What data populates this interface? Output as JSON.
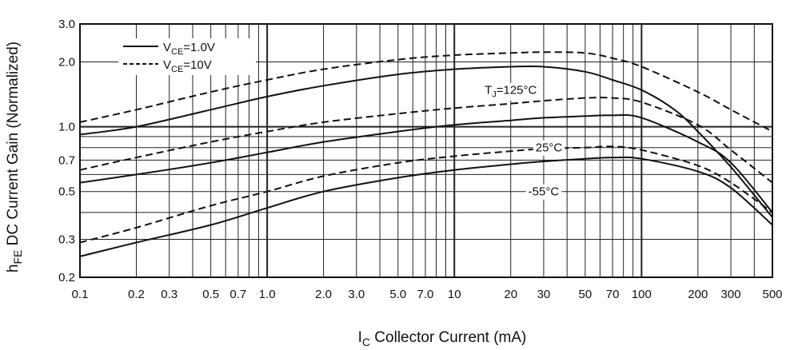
{
  "chart_data": {
    "type": "line",
    "xlabel": "Collector Current (mA)",
    "xlabel_symbol": "I",
    "xlabel_sub": "C",
    "ylabel": "DC Current Gain (Normalized)",
    "ylabel_symbol": "h",
    "ylabel_sub": "FE",
    "x_scale": "log",
    "y_scale": "log",
    "xlim": [
      0.1,
      500
    ],
    "ylim": [
      0.2,
      3.0
    ],
    "grid": true,
    "legend_position": "top-left",
    "x_ticks": [
      {
        "v": 0.1,
        "label": "0.1"
      },
      {
        "v": 0.2,
        "label": "0.2"
      },
      {
        "v": 0.3,
        "label": "0.3"
      },
      {
        "v": 0.5,
        "label": "0.5"
      },
      {
        "v": 0.7,
        "label": "0.7"
      },
      {
        "v": 1.0,
        "label": "1.0"
      },
      {
        "v": 2.0,
        "label": "2.0"
      },
      {
        "v": 3.0,
        "label": "3.0"
      },
      {
        "v": 5.0,
        "label": "5.0"
      },
      {
        "v": 7.0,
        "label": "7.0"
      },
      {
        "v": 10,
        "label": "10"
      },
      {
        "v": 20,
        "label": "20"
      },
      {
        "v": 30,
        "label": "30"
      },
      {
        "v": 50,
        "label": "50"
      },
      {
        "v": 70,
        "label": "70"
      },
      {
        "v": 100,
        "label": "100"
      },
      {
        "v": 200,
        "label": "200"
      },
      {
        "v": 300,
        "label": "300"
      },
      {
        "v": 500,
        "label": "500"
      }
    ],
    "y_ticks": [
      {
        "v": 0.2,
        "label": "0.2"
      },
      {
        "v": 0.3,
        "label": "0.3"
      },
      {
        "v": 0.5,
        "label": "0.5"
      },
      {
        "v": 0.7,
        "label": "0.7"
      },
      {
        "v": 1.0,
        "label": "1.0"
      },
      {
        "v": 2.0,
        "label": "2.0"
      },
      {
        "v": 3.0,
        "label": "3.0"
      }
    ],
    "legend": [
      {
        "symbol": "V",
        "sub": "CE",
        "text": "=1.0V",
        "style": "solid"
      },
      {
        "symbol": "V",
        "sub": "CE",
        "text": "=10V",
        "style": "dashed"
      }
    ],
    "annotations": [
      {
        "text": "=125°C",
        "prefix": "T",
        "sub": "J",
        "at": [
          20,
          1.48
        ]
      },
      {
        "text": "25°C",
        "at": [
          32,
          0.8
        ]
      },
      {
        "text": "-55°C",
        "at": [
          30,
          0.5
        ]
      }
    ],
    "series": [
      {
        "temp": "125°C",
        "style": "solid",
        "x": [
          0.1,
          0.2,
          0.5,
          1,
          2,
          5,
          10,
          20,
          30,
          50,
          70,
          100,
          150,
          200,
          300,
          500
        ],
        "y": [
          0.92,
          1.0,
          1.2,
          1.38,
          1.55,
          1.75,
          1.85,
          1.9,
          1.9,
          1.8,
          1.65,
          1.48,
          1.2,
          0.95,
          0.65,
          0.38
        ]
      },
      {
        "temp": "125°C",
        "style": "dashed",
        "x": [
          0.1,
          0.2,
          0.5,
          1,
          2,
          5,
          10,
          20,
          30,
          50,
          70,
          100,
          200,
          300,
          500
        ],
        "y": [
          1.05,
          1.2,
          1.45,
          1.65,
          1.85,
          2.05,
          2.15,
          2.2,
          2.22,
          2.2,
          2.08,
          1.9,
          1.45,
          1.2,
          0.95
        ]
      },
      {
        "temp": "25°C",
        "style": "solid",
        "x": [
          0.1,
          0.2,
          0.5,
          1,
          2,
          5,
          10,
          20,
          30,
          50,
          70,
          100,
          200,
          300,
          500
        ],
        "y": [
          0.55,
          0.6,
          0.68,
          0.76,
          0.85,
          0.95,
          1.02,
          1.07,
          1.1,
          1.12,
          1.13,
          1.1,
          0.85,
          0.68,
          0.4
        ]
      },
      {
        "temp": "25°C",
        "style": "dashed",
        "x": [
          0.1,
          0.2,
          0.5,
          1,
          2,
          5,
          10,
          20,
          30,
          50,
          70,
          100,
          200,
          300,
          500
        ],
        "y": [
          0.63,
          0.72,
          0.85,
          0.95,
          1.05,
          1.15,
          1.22,
          1.28,
          1.32,
          1.36,
          1.36,
          1.3,
          1.02,
          0.78,
          0.55
        ]
      },
      {
        "temp": "-55°C",
        "style": "solid",
        "x": [
          0.1,
          0.2,
          0.5,
          1,
          2,
          5,
          10,
          20,
          30,
          50,
          70,
          100,
          200,
          300,
          500
        ],
        "y": [
          0.25,
          0.29,
          0.35,
          0.42,
          0.5,
          0.58,
          0.63,
          0.67,
          0.69,
          0.71,
          0.72,
          0.71,
          0.62,
          0.52,
          0.35
        ]
      },
      {
        "temp": "-55°C",
        "style": "dashed",
        "x": [
          0.1,
          0.2,
          0.5,
          1,
          2,
          5,
          10,
          20,
          30,
          50,
          70,
          100,
          200,
          300,
          500
        ],
        "y": [
          0.29,
          0.34,
          0.43,
          0.5,
          0.59,
          0.68,
          0.73,
          0.77,
          0.79,
          0.8,
          0.81,
          0.78,
          0.66,
          0.55,
          0.4
        ]
      }
    ]
  }
}
